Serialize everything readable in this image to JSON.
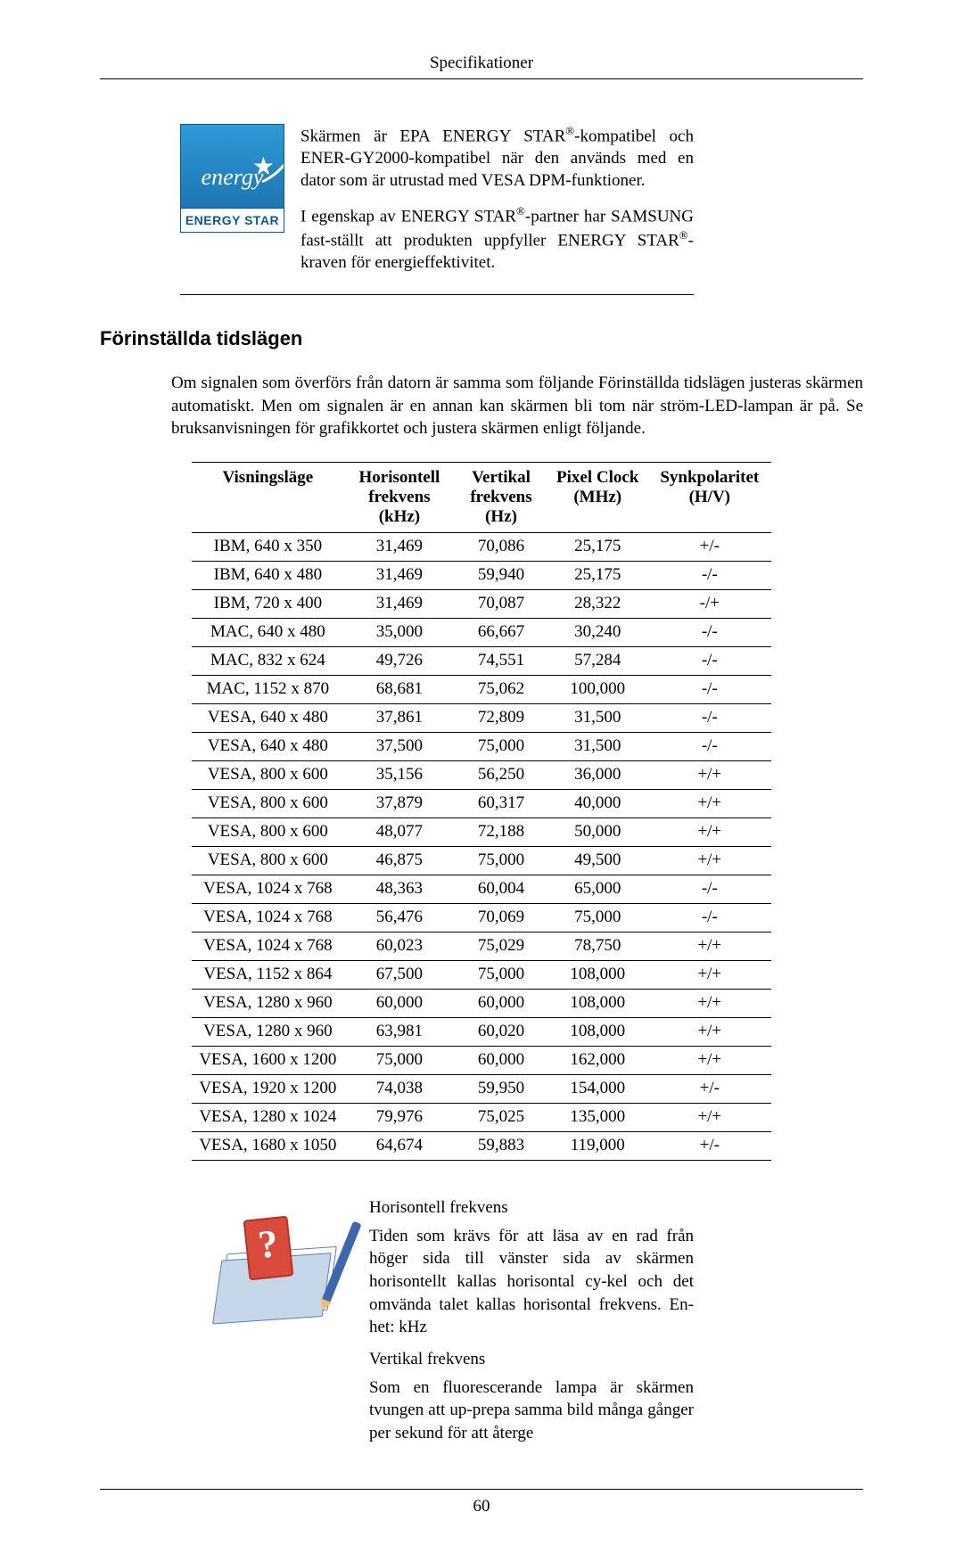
{
  "header": {
    "title": "Specifikationer"
  },
  "logo": {
    "script": "energy",
    "bar": "ENERGY STAR"
  },
  "energy": {
    "p1a": "Skärmen är EPA ENERGY STAR",
    "p1b": "-kompatibel och ENER-GY2000-kompatibel när den används med en dator som är utrustad med VESA DPM-funktioner.",
    "p2a": "I egenskap av ENERGY STAR",
    "p2b": "-partner har SAMSUNG fast-ställt att produkten uppfyller ENERGY STAR",
    "p2c": "-kraven för energieffektivitet."
  },
  "section_title": "Förinställda tidslägen",
  "intro": "Om signalen som överförs från datorn är samma som följande Förinställda tidslägen justeras skärmen automatiskt. Men om signalen är en annan kan skärmen bli tom när ström-LED-lampan är på. Se bruksanvisningen för grafikkortet och justera skärmen enligt följande.",
  "table": {
    "headers": {
      "mode": "Visningsläge",
      "h": "Horisontell frekvens (kHz)",
      "v": "Vertikal frekvens (Hz)",
      "clk": "Pixel Clock (MHz)",
      "pol": "Synkpolaritet (H/V)"
    },
    "rows": [
      {
        "mode": "IBM, 640 x 350",
        "h": "31,469",
        "v": "70,086",
        "clk": "25,175",
        "pol": "+/-"
      },
      {
        "mode": "IBM, 640 x 480",
        "h": "31,469",
        "v": "59,940",
        "clk": "25,175",
        "pol": "-/-"
      },
      {
        "mode": "IBM, 720 x 400",
        "h": "31,469",
        "v": "70,087",
        "clk": "28,322",
        "pol": "-/+"
      },
      {
        "mode": "MAC, 640 x 480",
        "h": "35,000",
        "v": "66,667",
        "clk": "30,240",
        "pol": "-/-"
      },
      {
        "mode": "MAC, 832 x 624",
        "h": "49,726",
        "v": "74,551",
        "clk": "57,284",
        "pol": "-/-"
      },
      {
        "mode": "MAC, 1152 x 870",
        "h": "68,681",
        "v": "75,062",
        "clk": "100,000",
        "pol": "-/-"
      },
      {
        "mode": "VESA, 640 x 480",
        "h": "37,861",
        "v": "72,809",
        "clk": "31,500",
        "pol": "-/-"
      },
      {
        "mode": "VESA, 640 x 480",
        "h": "37,500",
        "v": "75,000",
        "clk": "31,500",
        "pol": "-/-"
      },
      {
        "mode": "VESA, 800 x 600",
        "h": "35,156",
        "v": "56,250",
        "clk": "36,000",
        "pol": "+/+"
      },
      {
        "mode": "VESA, 800 x 600",
        "h": "37,879",
        "v": "60,317",
        "clk": "40,000",
        "pol": "+/+"
      },
      {
        "mode": "VESA, 800 x 600",
        "h": "48,077",
        "v": "72,188",
        "clk": "50,000",
        "pol": "+/+"
      },
      {
        "mode": "VESA, 800 x 600",
        "h": "46,875",
        "v": "75,000",
        "clk": "49,500",
        "pol": "+/+"
      },
      {
        "mode": "VESA, 1024 x 768",
        "h": "48,363",
        "v": "60,004",
        "clk": "65,000",
        "pol": "-/-"
      },
      {
        "mode": "VESA, 1024 x 768",
        "h": "56,476",
        "v": "70,069",
        "clk": "75,000",
        "pol": "-/-"
      },
      {
        "mode": "VESA, 1024 x 768",
        "h": "60,023",
        "v": "75,029",
        "clk": "78,750",
        "pol": "+/+"
      },
      {
        "mode": "VESA, 1152 x 864",
        "h": "67,500",
        "v": "75,000",
        "clk": "108,000",
        "pol": "+/+"
      },
      {
        "mode": "VESA, 1280 x 960",
        "h": "60,000",
        "v": "60,000",
        "clk": "108,000",
        "pol": "+/+"
      },
      {
        "mode": "VESA, 1280 x 960",
        "h": "63,981",
        "v": "60,020",
        "clk": "108,000",
        "pol": "+/+"
      },
      {
        "mode": "VESA, 1600 x 1200",
        "h": "75,000",
        "v": "60,000",
        "clk": "162,000",
        "pol": "+/+"
      },
      {
        "mode": "VESA, 1920 x 1200",
        "h": "74,038",
        "v": "59,950",
        "clk": "154,000",
        "pol": "+/-"
      },
      {
        "mode": "VESA, 1280 x 1024",
        "h": "79,976",
        "v": "75,025",
        "clk": "135,000",
        "pol": "+/+"
      },
      {
        "mode": "VESA, 1680 x 1050",
        "h": "64,674",
        "v": "59,883",
        "clk": "119,000",
        "pol": "+/-"
      }
    ]
  },
  "defs": {
    "h_title": "Horisontell frekvens",
    "h_body": "Tiden som krävs för att läsa av en rad från höger sida till vänster sida av skärmen horisontellt kallas horisontal cy-kel och det omvända talet kallas horisontal frekvens. En-het: kHz",
    "v_title": "Vertikal frekvens",
    "v_body": "Som en fluorescerande lampa är skärmen tvungen att up-prepa samma bild många gånger per sekund för att återge"
  },
  "footer": {
    "page": "60"
  },
  "reg": "®"
}
